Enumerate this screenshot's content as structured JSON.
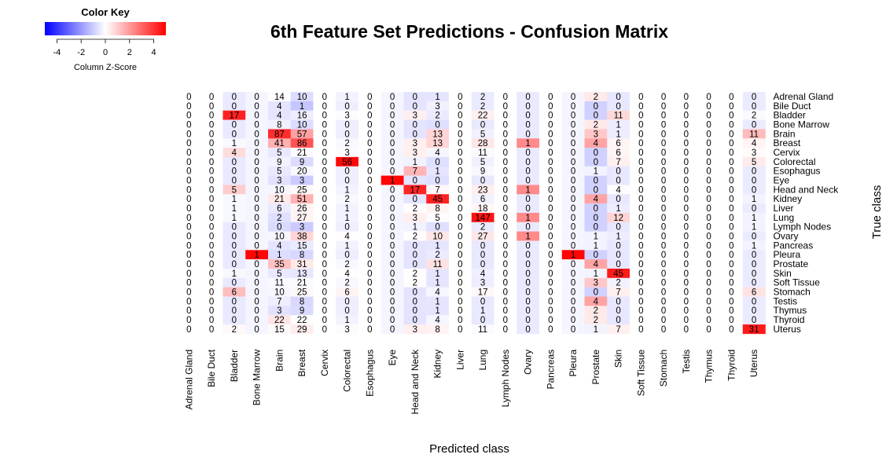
{
  "chart_data": {
    "type": "heatmap",
    "title": "6th Feature Set Predictions - Confusion Matrix",
    "xlabel": "Predicted class",
    "ylabel": "True class",
    "color_key": {
      "title": "Color Key",
      "subtitle": "Column Z-Score",
      "ticks": [
        -4,
        -2,
        0,
        2,
        4
      ],
      "range": [
        -5,
        5
      ],
      "low_color": "#0000ff",
      "mid_color": "#ffffff",
      "high_color": "#ff0000"
    },
    "row_labels": [
      "Adrenal Gland",
      "Bile Duct",
      "Bladder",
      "Bone Marrow",
      "Brain",
      "Breast",
      "Cervix",
      "Colorectal",
      "Esophagus",
      "Eye",
      "Head and Neck",
      "Kidney",
      "Liver",
      "Lung",
      "Lymph Nodes",
      "Ovary",
      "Pancreas",
      "Pleura",
      "Prostate",
      "Skin",
      "Soft Tissue",
      "Stomach",
      "Testis",
      "Thymus",
      "Thyroid",
      "Uterus"
    ],
    "col_labels": [
      "Adrenal Gland",
      "Bile Duct",
      "Bladder",
      "Bone Marrow",
      "Brain",
      "Breast",
      "Cervix",
      "Colorectal",
      "Esophagus",
      "Eye",
      "Head and Neck",
      "Kidney",
      "Liver",
      "Lung",
      "Lymph Nodes",
      "Ovary",
      "Pancreas",
      "Pleura",
      "Prostate",
      "Skin",
      "Soft Tissue",
      "Stomach",
      "Testis",
      "Thymus",
      "Thyroid",
      "Uterus"
    ],
    "values": [
      [
        0,
        0,
        0,
        0,
        14,
        10,
        0,
        1,
        0,
        0,
        0,
        1,
        0,
        2,
        0,
        0,
        0,
        0,
        2,
        0,
        0,
        0,
        0,
        0,
        0,
        0
      ],
      [
        0,
        0,
        0,
        0,
        4,
        1,
        0,
        0,
        0,
        0,
        0,
        3,
        0,
        2,
        0,
        0,
        0,
        0,
        0,
        0,
        0,
        0,
        0,
        0,
        0,
        0
      ],
      [
        0,
        0,
        17,
        0,
        4,
        16,
        0,
        3,
        0,
        0,
        3,
        2,
        0,
        22,
        0,
        0,
        0,
        0,
        0,
        11,
        0,
        0,
        0,
        0,
        0,
        2
      ],
      [
        0,
        0,
        0,
        0,
        8,
        10,
        0,
        0,
        0,
        0,
        0,
        0,
        0,
        0,
        0,
        0,
        0,
        0,
        2,
        1,
        0,
        0,
        0,
        0,
        0,
        0
      ],
      [
        0,
        0,
        0,
        0,
        87,
        57,
        0,
        0,
        0,
        0,
        0,
        13,
        0,
        5,
        0,
        0,
        0,
        0,
        3,
        1,
        0,
        0,
        0,
        0,
        0,
        11
      ],
      [
        0,
        0,
        1,
        0,
        41,
        86,
        0,
        2,
        0,
        0,
        3,
        13,
        0,
        28,
        0,
        1,
        0,
        0,
        4,
        6,
        0,
        0,
        0,
        0,
        0,
        4
      ],
      [
        0,
        0,
        4,
        0,
        5,
        21,
        0,
        3,
        0,
        0,
        3,
        4,
        0,
        11,
        0,
        0,
        0,
        0,
        0,
        6,
        0,
        0,
        0,
        0,
        0,
        3
      ],
      [
        0,
        0,
        0,
        0,
        9,
        9,
        0,
        56,
        0,
        0,
        1,
        0,
        0,
        5,
        0,
        0,
        0,
        0,
        0,
        7,
        0,
        0,
        0,
        0,
        0,
        5
      ],
      [
        0,
        0,
        0,
        0,
        5,
        20,
        0,
        0,
        0,
        0,
        7,
        1,
        0,
        9,
        0,
        0,
        0,
        0,
        1,
        0,
        0,
        0,
        0,
        0,
        0,
        0
      ],
      [
        0,
        0,
        0,
        0,
        3,
        3,
        0,
        0,
        0,
        1,
        0,
        0,
        0,
        0,
        0,
        0,
        0,
        0,
        0,
        0,
        0,
        0,
        0,
        0,
        0,
        0
      ],
      [
        0,
        0,
        5,
        0,
        10,
        25,
        0,
        1,
        0,
        0,
        17,
        7,
        0,
        23,
        0,
        1,
        0,
        0,
        0,
        4,
        0,
        0,
        0,
        0,
        0,
        0
      ],
      [
        0,
        0,
        1,
        0,
        21,
        51,
        0,
        2,
        0,
        0,
        0,
        45,
        0,
        6,
        0,
        0,
        0,
        0,
        4,
        0,
        0,
        0,
        0,
        0,
        0,
        1
      ],
      [
        0,
        0,
        1,
        0,
        6,
        26,
        0,
        1,
        0,
        0,
        2,
        8,
        0,
        18,
        0,
        0,
        0,
        0,
        0,
        1,
        0,
        0,
        0,
        0,
        0,
        0
      ],
      [
        0,
        0,
        1,
        0,
        2,
        27,
        0,
        1,
        0,
        0,
        3,
        5,
        0,
        147,
        0,
        1,
        0,
        0,
        0,
        12,
        0,
        0,
        0,
        0,
        0,
        1
      ],
      [
        0,
        0,
        0,
        0,
        0,
        3,
        0,
        0,
        0,
        0,
        1,
        0,
        0,
        2,
        0,
        0,
        0,
        0,
        0,
        0,
        0,
        0,
        0,
        0,
        0,
        1
      ],
      [
        0,
        0,
        0,
        0,
        10,
        38,
        0,
        4,
        0,
        0,
        2,
        10,
        0,
        27,
        0,
        1,
        0,
        0,
        1,
        1,
        0,
        0,
        0,
        0,
        0,
        0
      ],
      [
        0,
        0,
        0,
        0,
        4,
        15,
        0,
        1,
        0,
        0,
        0,
        1,
        0,
        0,
        0,
        0,
        0,
        0,
        1,
        0,
        0,
        0,
        0,
        0,
        0,
        1
      ],
      [
        0,
        0,
        0,
        1,
        1,
        8,
        0,
        0,
        0,
        0,
        0,
        2,
        0,
        0,
        0,
        0,
        0,
        1,
        0,
        0,
        0,
        0,
        0,
        0,
        0,
        0
      ],
      [
        0,
        0,
        0,
        0,
        35,
        31,
        0,
        2,
        0,
        0,
        0,
        11,
        0,
        0,
        0,
        0,
        0,
        0,
        4,
        0,
        0,
        0,
        0,
        0,
        0,
        0
      ],
      [
        0,
        0,
        1,
        0,
        5,
        13,
        0,
        4,
        0,
        0,
        2,
        1,
        0,
        4,
        0,
        0,
        0,
        0,
        1,
        45,
        0,
        0,
        0,
        0,
        0,
        0
      ],
      [
        0,
        0,
        0,
        0,
        11,
        21,
        0,
        2,
        0,
        0,
        2,
        1,
        0,
        3,
        0,
        0,
        0,
        0,
        3,
        2,
        0,
        0,
        0,
        0,
        0,
        0
      ],
      [
        0,
        0,
        6,
        0,
        10,
        25,
        0,
        6,
        0,
        0,
        0,
        4,
        0,
        17,
        0,
        0,
        0,
        0,
        0,
        7,
        0,
        0,
        0,
        0,
        0,
        6
      ],
      [
        0,
        0,
        0,
        0,
        7,
        8,
        0,
        0,
        0,
        0,
        0,
        1,
        0,
        0,
        0,
        0,
        0,
        0,
        4,
        0,
        0,
        0,
        0,
        0,
        0,
        0
      ],
      [
        0,
        0,
        0,
        0,
        3,
        9,
        0,
        0,
        0,
        0,
        0,
        1,
        0,
        1,
        0,
        0,
        0,
        0,
        2,
        0,
        0,
        0,
        0,
        0,
        0,
        0
      ],
      [
        0,
        0,
        0,
        0,
        22,
        22,
        0,
        1,
        0,
        0,
        0,
        4,
        0,
        0,
        0,
        0,
        0,
        0,
        2,
        0,
        0,
        0,
        0,
        0,
        0,
        0
      ],
      [
        0,
        0,
        2,
        0,
        15,
        29,
        0,
        3,
        0,
        0,
        3,
        8,
        0,
        11,
        0,
        0,
        0,
        0,
        1,
        7,
        0,
        0,
        0,
        0,
        0,
        31
      ]
    ]
  }
}
